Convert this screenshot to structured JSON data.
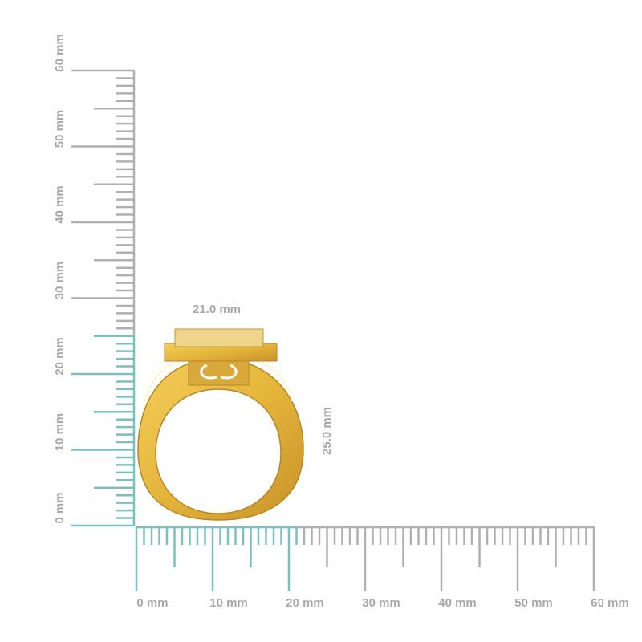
{
  "horizontal_ruler": {
    "labels": [
      "0 mm",
      "10 mm",
      "20 mm",
      "30 mm",
      "40 mm",
      "50 mm",
      "60 mm"
    ]
  },
  "vertical_ruler": {
    "labels": [
      "0 mm",
      "10 mm",
      "20 mm",
      "30 mm",
      "40 mm",
      "50 mm",
      "60 mm"
    ]
  },
  "measurements": {
    "width": "21.0 mm",
    "height": "25.0 mm"
  }
}
